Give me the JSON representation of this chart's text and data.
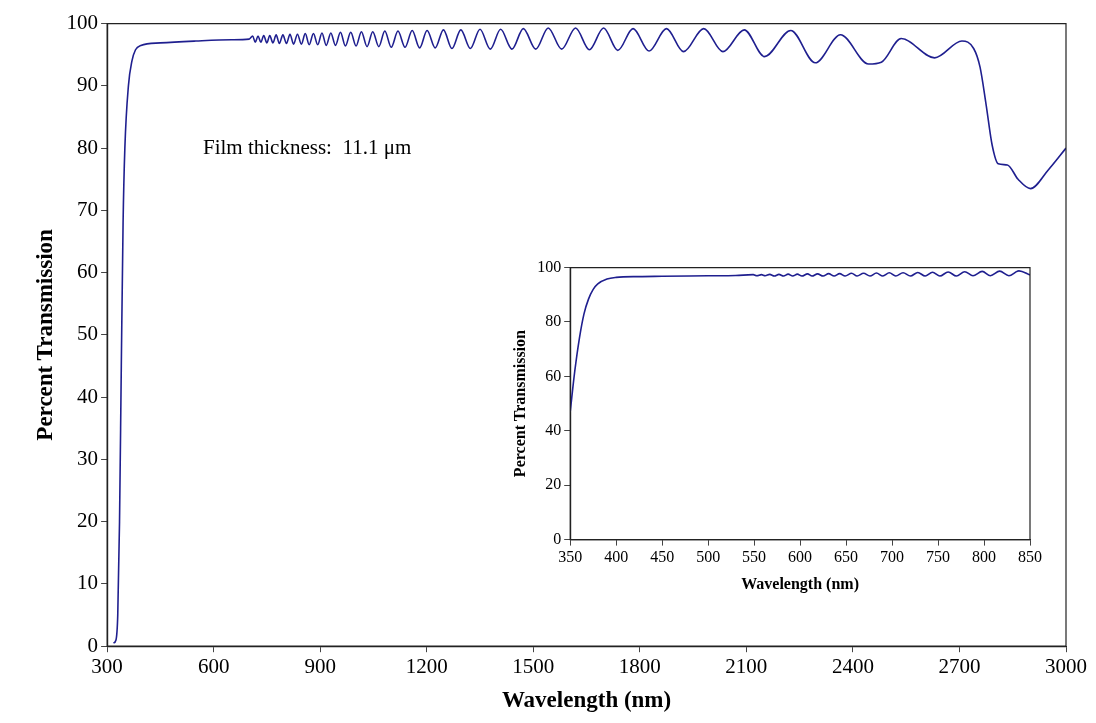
{
  "chart_data": [
    {
      "type": "line",
      "xlabel": "Wavelength (nm)",
      "ylabel": "Percent Transmission",
      "annotations": [
        "Film thickness:  11.1 μm"
      ],
      "xlim": [
        300,
        3000
      ],
      "xticks": [
        300,
        600,
        900,
        1200,
        1500,
        1800,
        2100,
        2400,
        2700,
        3000
      ],
      "ylim": [
        0,
        100
      ],
      "yticks": [
        0,
        10,
        20,
        30,
        40,
        50,
        60,
        70,
        80,
        90,
        100
      ],
      "grid": false,
      "legend": false,
      "marker": "none",
      "line_style": "solid",
      "series": [
        {
          "color": "#1f1f8f",
          "x": [
            318,
            325,
            330,
            335,
            340,
            345,
            350,
            360,
            370,
            380,
            395,
            450,
            550,
            650,
            700,
            710,
            717,
            725,
            733,
            741,
            750,
            758,
            767,
            776,
            785,
            795,
            805,
            815,
            825,
            836,
            847,
            858,
            869,
            881,
            893,
            905,
            917,
            930,
            943,
            957,
            971,
            986,
            1001,
            1016,
            1032,
            1048,
            1065,
            1082,
            1100,
            1119,
            1139,
            1159,
            1180,
            1201,
            1224,
            1247,
            1271,
            1296,
            1323,
            1350,
            1379,
            1408,
            1440,
            1472,
            1507,
            1542,
            1580,
            1619,
            1658,
            1698,
            1738,
            1781,
            1826,
            1875,
            1923,
            1980,
            2034,
            2094,
            2151,
            2225,
            2294,
            2365,
            2444,
            2480,
            2536,
            2630,
            2707,
            2740,
            2758,
            2775,
            2792,
            2809,
            2835,
            2865,
            2900,
            2950,
            3000
          ],
          "values": [
            0.5,
            1,
            5,
            20,
            45,
            68,
            80,
            90,
            94,
            95.8,
            96.5,
            96.9,
            97.2,
            97.4,
            97.5,
            98.0,
            97.0,
            98.0,
            97.0,
            98.1,
            96.9,
            98.1,
            96.9,
            98.2,
            96.8,
            98.2,
            96.8,
            98.3,
            96.7,
            98.3,
            96.7,
            98.4,
            96.6,
            98.4,
            96.6,
            98.5,
            96.5,
            98.5,
            96.5,
            98.6,
            96.4,
            98.6,
            96.4,
            98.7,
            96.3,
            98.7,
            96.3,
            98.8,
            96.2,
            98.8,
            96.2,
            98.9,
            96.1,
            98.9,
            96.1,
            99.0,
            96.0,
            99.0,
            96.0,
            99.1,
            95.9,
            99.1,
            95.9,
            99.2,
            95.9,
            99.3,
            95.9,
            99.3,
            95.8,
            99.3,
            95.7,
            99.2,
            95.6,
            99.2,
            95.5,
            99.2,
            95.5,
            99.0,
            94.7,
            98.9,
            93.7,
            98.2,
            93.5,
            93.8,
            97.6,
            94.5,
            97.2,
            96,
            93,
            87,
            80.5,
            77.5,
            77.3,
            75,
            73.5,
            76.5,
            80
          ]
        }
      ]
    },
    {
      "type": "line",
      "xlabel": "Wavelength (nm)",
      "ylabel": "Percent Transmission",
      "xlim": [
        350,
        850
      ],
      "xticks": [
        350,
        400,
        450,
        500,
        550,
        600,
        650,
        700,
        750,
        800,
        850
      ],
      "ylim": [
        0,
        100
      ],
      "yticks": [
        0,
        20,
        40,
        60,
        80,
        100
      ],
      "grid": false,
      "legend": false,
      "marker": "none",
      "line_style": "solid",
      "series": [
        {
          "color": "#1f1f8f",
          "x": [
            350,
            355,
            360,
            365,
            370,
            375,
            380,
            390,
            400,
            425,
            450,
            500,
            530,
            549,
            553,
            558,
            562,
            567,
            572,
            577,
            582,
            587,
            592,
            597,
            602,
            608,
            613,
            619,
            625,
            631,
            637,
            643,
            649,
            656,
            662,
            669,
            676,
            683,
            690,
            697,
            704,
            712,
            720,
            728,
            736,
            744,
            752,
            761,
            770,
            779,
            788,
            798,
            807,
            817,
            827,
            838,
            850
          ],
          "values": [
            47,
            62,
            74,
            83,
            88.5,
            92,
            94,
            95.8,
            96.4,
            96.7,
            96.8,
            97.0,
            97.1,
            97.4,
            97.0,
            97.4,
            97.0,
            97.5,
            96.9,
            97.5,
            96.9,
            97.6,
            96.9,
            97.6,
            96.9,
            97.7,
            96.9,
            97.7,
            96.9,
            97.8,
            96.9,
            97.8,
            96.9,
            97.9,
            96.9,
            97.9,
            96.9,
            98.0,
            96.9,
            98.1,
            96.9,
            98.1,
            96.9,
            98.2,
            96.9,
            98.3,
            96.9,
            98.4,
            96.9,
            98.5,
            97.0,
            98.6,
            97.0,
            98.7,
            97.0,
            98.8,
            97.3
          ]
        }
      ]
    }
  ]
}
